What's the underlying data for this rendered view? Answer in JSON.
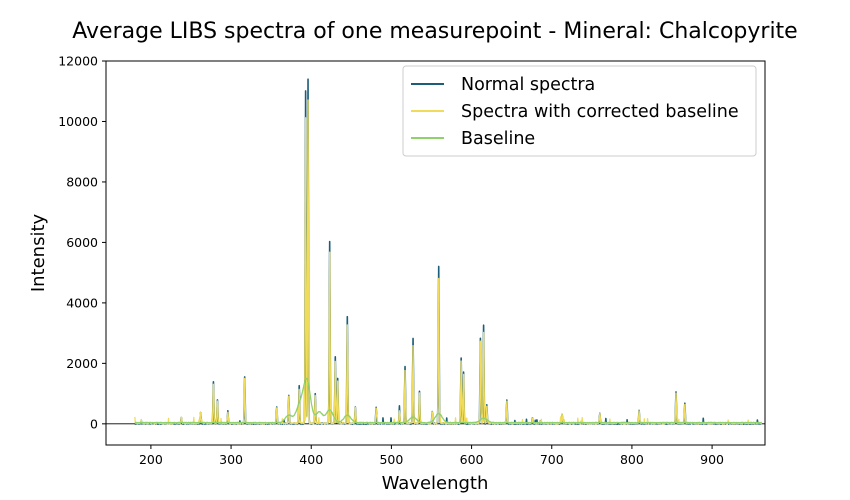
{
  "chart_data": {
    "type": "line",
    "title": "Average LIBS spectra of one measurepoint - Mineral: Chalcopyrite",
    "xlabel": "Wavelength",
    "ylabel": "Intensity",
    "xlim": [
      144,
      966
    ],
    "ylim": [
      -700,
      12000
    ],
    "xticks": [
      200,
      300,
      400,
      500,
      600,
      700,
      800,
      900
    ],
    "yticks": [
      0,
      2000,
      4000,
      6000,
      8000,
      10000,
      12000
    ],
    "grid": false,
    "legend_position": "top-right",
    "range": [
      180,
      962
    ],
    "series": [
      {
        "name": "Normal spectra",
        "color": "#1b5e7a",
        "peaks": [
          [
            238,
            200
          ],
          [
            262,
            380
          ],
          [
            278,
            1380
          ],
          [
            283,
            780
          ],
          [
            296,
            400
          ],
          [
            317,
            1560
          ],
          [
            357,
            560
          ],
          [
            372,
            950
          ],
          [
            385,
            1240
          ],
          [
            393,
            11000
          ],
          [
            396,
            11400
          ],
          [
            405,
            1000
          ],
          [
            423,
            6000
          ],
          [
            430,
            2200
          ],
          [
            433,
            1480
          ],
          [
            445,
            3550
          ],
          [
            455,
            560
          ],
          [
            481,
            520
          ],
          [
            510,
            440
          ],
          [
            517,
            1840
          ],
          [
            527,
            2800
          ],
          [
            535,
            1060
          ],
          [
            551,
            400
          ],
          [
            559,
            5200
          ],
          [
            587,
            2180
          ],
          [
            590,
            1700
          ],
          [
            611,
            2840
          ],
          [
            615,
            3250
          ],
          [
            619,
            600
          ],
          [
            644,
            780
          ],
          [
            676,
            200
          ],
          [
            713,
            300
          ],
          [
            760,
            340
          ],
          [
            809,
            420
          ],
          [
            855,
            1060
          ],
          [
            866,
            680
          ]
        ]
      },
      {
        "name": "Spectra with corrected baseline",
        "color": "#f0dc5a",
        "peaks": [
          [
            238,
            190
          ],
          [
            262,
            350
          ],
          [
            278,
            1300
          ],
          [
            283,
            740
          ],
          [
            296,
            370
          ],
          [
            317,
            1480
          ],
          [
            357,
            510
          ],
          [
            372,
            880
          ],
          [
            385,
            1120
          ],
          [
            393,
            10100
          ],
          [
            396,
            10700
          ],
          [
            405,
            920
          ],
          [
            423,
            5650
          ],
          [
            430,
            2050
          ],
          [
            433,
            1380
          ],
          [
            445,
            3250
          ],
          [
            455,
            520
          ],
          [
            481,
            490
          ],
          [
            510,
            420
          ],
          [
            517,
            1750
          ],
          [
            527,
            2550
          ],
          [
            535,
            1000
          ],
          [
            551,
            380
          ],
          [
            559,
            4800
          ],
          [
            587,
            2050
          ],
          [
            590,
            1600
          ],
          [
            611,
            2700
          ],
          [
            615,
            3000
          ],
          [
            619,
            560
          ],
          [
            644,
            740
          ],
          [
            676,
            190
          ],
          [
            713,
            290
          ],
          [
            760,
            320
          ],
          [
            809,
            400
          ],
          [
            855,
            990
          ],
          [
            866,
            640
          ]
        ]
      },
      {
        "name": "Baseline",
        "color": "#8fd16a",
        "peaks": [
          [
            372,
            250
          ],
          [
            385,
            500
          ],
          [
            393,
            800
          ],
          [
            396,
            700
          ],
          [
            410,
            350
          ],
          [
            423,
            420
          ],
          [
            445,
            250
          ],
          [
            527,
            180
          ],
          [
            559,
            300
          ],
          [
            615,
            150
          ]
        ]
      }
    ]
  }
}
